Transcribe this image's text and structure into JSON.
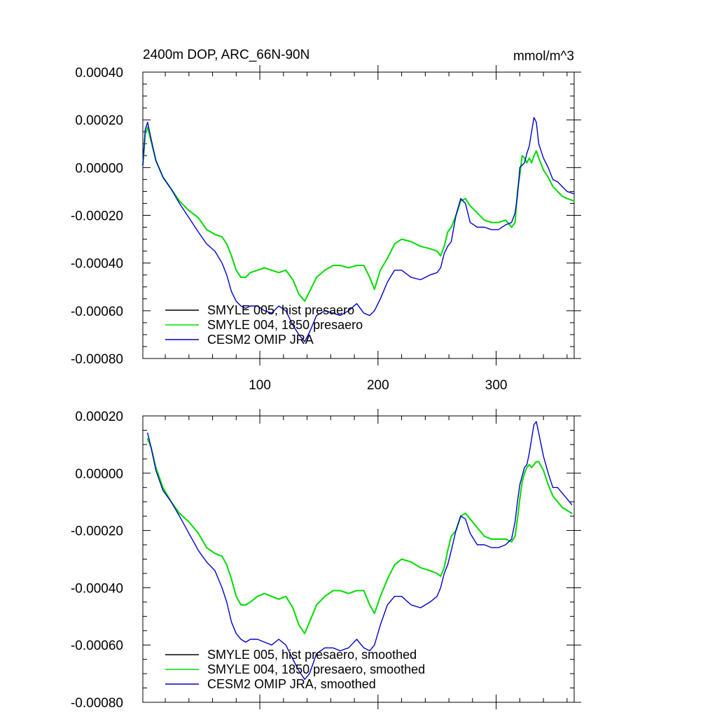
{
  "figure": {
    "title_left": "2400m DOP, ARC_66N-90N",
    "title_right": "mmol/m^3"
  },
  "chart_data": [
    {
      "type": "line",
      "title": "2400m DOP, ARC_66N-90N",
      "units": "mmol/m^3",
      "xlim": [
        1,
        366
      ],
      "ylim": [
        -0.0008,
        0.0004
      ],
      "xticks": [
        100,
        200,
        300
      ],
      "xtick_labels": [
        "100",
        "200",
        "300"
      ],
      "yticks": [
        0.0004,
        0.0002,
        0.0,
        -0.0002,
        -0.0004,
        -0.0006,
        -0.0008
      ],
      "ytick_labels": [
        "0.00040",
        "0.00020",
        "0.00000",
        "-0.00020",
        "-0.00040",
        "-0.00060",
        "-0.00080"
      ],
      "legend_position": "bottom-left",
      "series": [
        {
          "name": "SMYLE 005, hist presaero",
          "color": "#000000",
          "x": [
            1,
            3,
            5,
            8,
            12,
            18,
            25,
            32,
            40,
            48,
            55,
            62,
            68,
            72,
            76,
            80,
            84,
            88,
            92,
            98,
            104,
            110,
            116,
            122,
            128,
            133,
            138,
            142,
            148,
            155,
            162,
            168,
            175,
            182,
            188,
            193,
            197,
            202,
            208,
            214,
            220,
            228,
            236,
            244,
            250,
            253,
            256,
            259,
            262,
            266,
            270,
            274,
            278,
            284,
            290,
            296,
            302,
            308,
            313,
            316,
            318,
            320,
            322,
            324,
            326,
            328,
            330,
            332,
            334,
            336,
            340,
            344,
            348,
            352,
            356,
            360,
            366
          ],
          "y": [
            1e-05,
            0.00014,
            0.00017,
            0.00011,
            3e-05,
            -4e-05,
            -9e-05,
            -0.00014,
            -0.00018,
            -0.00021,
            -0.00026,
            -0.00028,
            -0.00029,
            -0.00032,
            -0.00037,
            -0.00043,
            -0.00046,
            -0.00046,
            -0.00044,
            -0.00043,
            -0.00042,
            -0.00043,
            -0.00044,
            -0.00043,
            -0.00047,
            -0.00053,
            -0.00056,
            -0.00052,
            -0.00046,
            -0.00043,
            -0.00041,
            -0.00041,
            -0.00042,
            -0.00041,
            -0.00041,
            -0.00046,
            -0.00051,
            -0.00043,
            -0.00038,
            -0.00032,
            -0.0003,
            -0.00031,
            -0.00033,
            -0.00034,
            -0.00035,
            -0.00037,
            -0.00033,
            -0.00027,
            -0.00025,
            -0.0002,
            -0.00014,
            -0.00013,
            -0.00016,
            -0.00019,
            -0.00022,
            -0.00023,
            -0.00023,
            -0.00022,
            -0.00025,
            -0.00023,
            -0.0001,
            -3e-05,
            5e-05,
            4e-05,
            2e-05,
            4e-05,
            2e-05,
            5e-05,
            7e-05,
            4e-05,
            -1e-05,
            -4e-05,
            -8e-05,
            -0.0001,
            -0.00012,
            -0.00013,
            -0.00014
          ]
        },
        {
          "name": "SMYLE 004, 1850 presaero",
          "color": "#00dd00",
          "x": [
            1,
            3,
            5,
            8,
            12,
            18,
            25,
            32,
            40,
            48,
            55,
            62,
            68,
            72,
            76,
            80,
            84,
            88,
            92,
            98,
            104,
            110,
            116,
            122,
            128,
            133,
            138,
            142,
            148,
            155,
            162,
            168,
            175,
            182,
            188,
            193,
            197,
            202,
            208,
            214,
            220,
            228,
            236,
            244,
            250,
            253,
            256,
            259,
            262,
            266,
            270,
            274,
            278,
            284,
            290,
            296,
            302,
            308,
            313,
            316,
            318,
            320,
            322,
            324,
            326,
            328,
            330,
            332,
            334,
            336,
            340,
            344,
            348,
            352,
            356,
            360,
            366
          ],
          "y": [
            1e-05,
            0.00014,
            0.00017,
            0.00011,
            3e-05,
            -4e-05,
            -9e-05,
            -0.00014,
            -0.00018,
            -0.00021,
            -0.00026,
            -0.00028,
            -0.00029,
            -0.00032,
            -0.00037,
            -0.00043,
            -0.00046,
            -0.00046,
            -0.00044,
            -0.00043,
            -0.00042,
            -0.00043,
            -0.00044,
            -0.00043,
            -0.00047,
            -0.00053,
            -0.00056,
            -0.00052,
            -0.00046,
            -0.00043,
            -0.00041,
            -0.00041,
            -0.00042,
            -0.00041,
            -0.00041,
            -0.00046,
            -0.00051,
            -0.00043,
            -0.00038,
            -0.00032,
            -0.0003,
            -0.00031,
            -0.00033,
            -0.00034,
            -0.00035,
            -0.00037,
            -0.00033,
            -0.00027,
            -0.00025,
            -0.0002,
            -0.00014,
            -0.00013,
            -0.00016,
            -0.00019,
            -0.00022,
            -0.00023,
            -0.00023,
            -0.00022,
            -0.00025,
            -0.00023,
            -0.0001,
            -3e-05,
            5e-05,
            4e-05,
            2e-05,
            4e-05,
            2e-05,
            5e-05,
            7e-05,
            4e-05,
            -1e-05,
            -4e-05,
            -8e-05,
            -0.0001,
            -0.00012,
            -0.00013,
            -0.00014
          ]
        },
        {
          "name": "CESM2 OMIP JRA",
          "color": "#0000cc",
          "x": [
            1,
            3,
            5,
            8,
            12,
            18,
            25,
            32,
            40,
            48,
            55,
            62,
            68,
            72,
            76,
            80,
            84,
            88,
            92,
            98,
            104,
            110,
            116,
            122,
            128,
            133,
            138,
            142,
            148,
            155,
            162,
            168,
            175,
            182,
            188,
            193,
            197,
            202,
            208,
            214,
            220,
            228,
            236,
            244,
            250,
            253,
            256,
            259,
            262,
            266,
            270,
            274,
            278,
            284,
            290,
            296,
            302,
            308,
            313,
            316,
            318,
            320,
            322,
            324,
            326,
            328,
            330,
            332,
            334,
            336,
            340,
            344,
            348,
            352,
            356,
            360,
            366
          ],
          "y": [
            1e-05,
            0.00016,
            0.00019,
            0.00012,
            3e-05,
            -4e-05,
            -9e-05,
            -0.00015,
            -0.00021,
            -0.00027,
            -0.00032,
            -0.00035,
            -0.0004,
            -0.00045,
            -0.00052,
            -0.00056,
            -0.00058,
            -0.00059,
            -0.00058,
            -0.00058,
            -0.0006,
            -0.00061,
            -0.00058,
            -0.0006,
            -0.00066,
            -0.0007,
            -0.00073,
            -0.00069,
            -0.00062,
            -0.0006,
            -0.00061,
            -0.00062,
            -0.0006,
            -0.00057,
            -0.00061,
            -0.00062,
            -0.0006,
            -0.00055,
            -0.00048,
            -0.00043,
            -0.00043,
            -0.00046,
            -0.00047,
            -0.00045,
            -0.00044,
            -0.00042,
            -0.00036,
            -0.00033,
            -0.00031,
            -0.0002,
            -0.00013,
            -0.00015,
            -0.00023,
            -0.00025,
            -0.00025,
            -0.00026,
            -0.00026,
            -0.00024,
            -0.00023,
            -0.00019,
            -0.00012,
            0.0,
            1e-05,
            2e-05,
            6e-05,
            9e-05,
            0.00015,
            0.00021,
            0.00019,
            0.0001,
            4e-05,
            0.0,
            -5e-05,
            -6e-05,
            -8e-05,
            -0.0001,
            -0.00011
          ]
        }
      ]
    },
    {
      "type": "line",
      "title": "",
      "xlim": [
        1,
        366
      ],
      "ylim": [
        -0.0008,
        0.0002
      ],
      "xticks": [
        100,
        200,
        300
      ],
      "yticks": [
        0.0002,
        0.0,
        -0.0002,
        -0.0004,
        -0.0006,
        -0.0008
      ],
      "ytick_labels": [
        "0.00020",
        "0.00000",
        "-0.00020",
        "-0.00040",
        "-0.00060",
        "-0.00080"
      ],
      "legend_position": "bottom-left",
      "series": [
        {
          "name": "SMYLE 005, hist presaero, smoothed",
          "color": "#000000",
          "x": [
            5,
            8,
            12,
            18,
            25,
            32,
            40,
            48,
            55,
            62,
            68,
            72,
            76,
            80,
            84,
            88,
            92,
            98,
            104,
            110,
            116,
            122,
            128,
            133,
            138,
            142,
            148,
            155,
            162,
            168,
            175,
            182,
            188,
            193,
            197,
            202,
            208,
            214,
            220,
            228,
            236,
            244,
            250,
            253,
            256,
            259,
            262,
            266,
            270,
            274,
            278,
            284,
            290,
            296,
            302,
            308,
            313,
            316,
            318,
            320,
            322,
            324,
            326,
            328,
            330,
            332,
            334,
            336,
            340,
            344,
            348,
            352,
            356,
            360,
            364
          ],
          "y": [
            0.00012,
            9e-05,
            2e-05,
            -5e-05,
            -0.0001,
            -0.00014,
            -0.00017,
            -0.00021,
            -0.00026,
            -0.00028,
            -0.00029,
            -0.00032,
            -0.00037,
            -0.00043,
            -0.00046,
            -0.00046,
            -0.00045,
            -0.00043,
            -0.00042,
            -0.00043,
            -0.00044,
            -0.00043,
            -0.00047,
            -0.00053,
            -0.00056,
            -0.00052,
            -0.00046,
            -0.00043,
            -0.00041,
            -0.00041,
            -0.00042,
            -0.00041,
            -0.00041,
            -0.00046,
            -0.00049,
            -0.00043,
            -0.00037,
            -0.00032,
            -0.0003,
            -0.00031,
            -0.00033,
            -0.00034,
            -0.00035,
            -0.00036,
            -0.00033,
            -0.00027,
            -0.00022,
            -0.0002,
            -0.00015,
            -0.00014,
            -0.00016,
            -0.00019,
            -0.00022,
            -0.00023,
            -0.00023,
            -0.00023,
            -0.00024,
            -0.00022,
            -0.00016,
            -9e-05,
            -3e-05,
            0.0,
            2e-05,
            3e-05,
            2e-05,
            3e-05,
            4e-05,
            4e-05,
            1e-05,
            -4e-05,
            -8e-05,
            -0.0001,
            -0.00012,
            -0.00013,
            -0.00014
          ]
        },
        {
          "name": "SMYLE 004, 1850 presaero, smoothed",
          "color": "#00dd00",
          "x": [
            5,
            8,
            12,
            18,
            25,
            32,
            40,
            48,
            55,
            62,
            68,
            72,
            76,
            80,
            84,
            88,
            92,
            98,
            104,
            110,
            116,
            122,
            128,
            133,
            138,
            142,
            148,
            155,
            162,
            168,
            175,
            182,
            188,
            193,
            197,
            202,
            208,
            214,
            220,
            228,
            236,
            244,
            250,
            253,
            256,
            259,
            262,
            266,
            270,
            274,
            278,
            284,
            290,
            296,
            302,
            308,
            313,
            316,
            318,
            320,
            322,
            324,
            326,
            328,
            330,
            332,
            334,
            336,
            340,
            344,
            348,
            352,
            356,
            360,
            364
          ],
          "y": [
            0.00012,
            9e-05,
            2e-05,
            -5e-05,
            -0.0001,
            -0.00014,
            -0.00017,
            -0.00021,
            -0.00026,
            -0.00028,
            -0.00029,
            -0.00032,
            -0.00037,
            -0.00043,
            -0.00046,
            -0.00046,
            -0.00045,
            -0.00043,
            -0.00042,
            -0.00043,
            -0.00044,
            -0.00043,
            -0.00047,
            -0.00053,
            -0.00056,
            -0.00052,
            -0.00046,
            -0.00043,
            -0.00041,
            -0.00041,
            -0.00042,
            -0.00041,
            -0.00041,
            -0.00046,
            -0.00049,
            -0.00043,
            -0.00037,
            -0.00032,
            -0.0003,
            -0.00031,
            -0.00033,
            -0.00034,
            -0.00035,
            -0.00036,
            -0.00033,
            -0.00027,
            -0.00022,
            -0.0002,
            -0.00015,
            -0.00014,
            -0.00016,
            -0.00019,
            -0.00022,
            -0.00023,
            -0.00023,
            -0.00023,
            -0.00024,
            -0.00022,
            -0.00016,
            -9e-05,
            -3e-05,
            0.0,
            2e-05,
            3e-05,
            2e-05,
            3e-05,
            4e-05,
            4e-05,
            1e-05,
            -4e-05,
            -8e-05,
            -0.0001,
            -0.00012,
            -0.00013,
            -0.00014
          ]
        },
        {
          "name": "CESM2 OMIP JRA, smoothed",
          "color": "#0000cc",
          "x": [
            5,
            8,
            12,
            18,
            25,
            32,
            40,
            48,
            55,
            62,
            68,
            72,
            76,
            80,
            84,
            88,
            92,
            98,
            104,
            110,
            116,
            122,
            128,
            133,
            138,
            142,
            148,
            155,
            162,
            168,
            175,
            182,
            188,
            193,
            197,
            202,
            208,
            214,
            220,
            228,
            236,
            244,
            250,
            253,
            256,
            259,
            262,
            266,
            270,
            274,
            278,
            284,
            290,
            296,
            302,
            308,
            313,
            316,
            318,
            320,
            322,
            324,
            326,
            328,
            330,
            332,
            334,
            336,
            340,
            344,
            348,
            352,
            356,
            360,
            364
          ],
          "y": [
            0.00014,
            9e-05,
            1e-05,
            -6e-05,
            -0.0001,
            -0.00015,
            -0.00021,
            -0.00027,
            -0.00031,
            -0.00034,
            -0.0004,
            -0.00045,
            -0.00052,
            -0.00056,
            -0.00058,
            -0.00059,
            -0.00058,
            -0.00058,
            -0.00059,
            -0.0006,
            -0.00058,
            -0.0006,
            -0.00065,
            -0.00069,
            -0.00072,
            -0.0007,
            -0.00063,
            -0.00061,
            -0.00061,
            -0.00062,
            -0.00061,
            -0.00058,
            -0.00061,
            -0.00062,
            -0.0006,
            -0.00053,
            -0.00046,
            -0.00043,
            -0.00043,
            -0.00046,
            -0.00047,
            -0.00045,
            -0.00043,
            -0.0004,
            -0.00035,
            -0.00032,
            -0.00027,
            -0.0002,
            -0.00015,
            -0.00016,
            -0.00021,
            -0.00025,
            -0.00025,
            -0.00026,
            -0.00026,
            -0.00025,
            -0.00023,
            -0.00017,
            -0.0001,
            -4e-05,
            -1e-05,
            2e-05,
            3e-05,
            7e-05,
            0.00012,
            0.00017,
            0.00018,
            0.00014,
            6e-05,
            0.0,
            -5e-05,
            -5e-05,
            -7e-05,
            -9e-05,
            -0.00011
          ]
        }
      ]
    }
  ]
}
